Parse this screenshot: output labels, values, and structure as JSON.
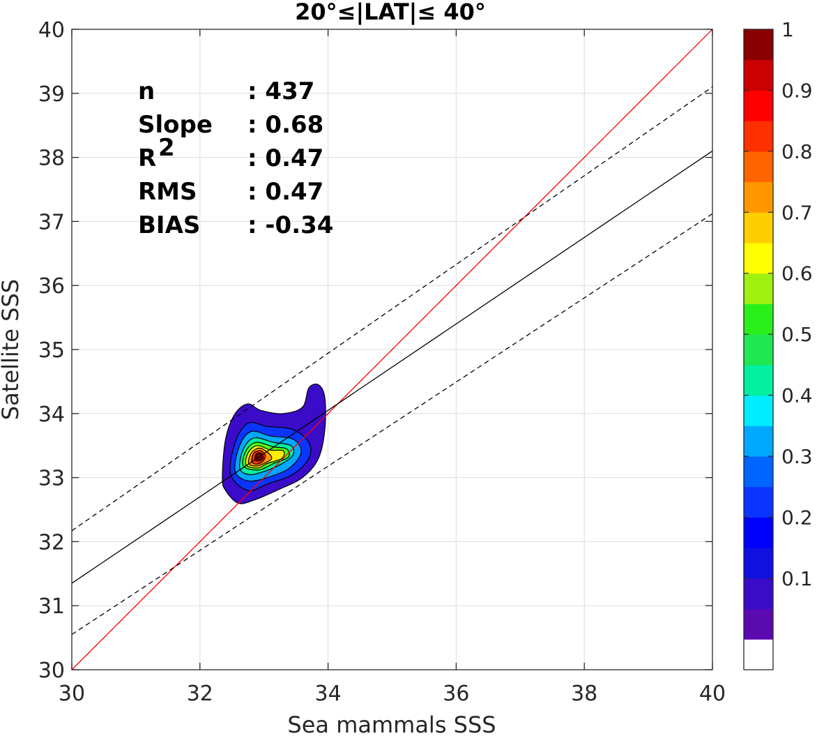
{
  "chart_data": {
    "type": "scatter",
    "title": "20°≤|LAT|≤ 40°",
    "xlabel": "Sea mammals SSS",
    "ylabel": "Satellite SSS",
    "xlim": [
      30,
      40
    ],
    "ylim": [
      30,
      40
    ],
    "xticks": [
      "30",
      "32",
      "34",
      "36",
      "38",
      "40"
    ],
    "yticks": [
      "30",
      "31",
      "32",
      "33",
      "34",
      "35",
      "36",
      "37",
      "38",
      "39",
      "40"
    ],
    "grid": true,
    "stats": [
      {
        "label": "n",
        "sup": "",
        "value": ": 437"
      },
      {
        "label": "Slope",
        "sup": "",
        "value": ": 0.68"
      },
      {
        "label": "R",
        "sup": "2",
        "value": ": 0.47"
      },
      {
        "label": "RMS",
        "sup": "",
        "value": ": 0.47"
      },
      {
        "label": "BIAS",
        "sup": "",
        "value": ": -0.34"
      }
    ],
    "lines": [
      {
        "kind": "one-to-one",
        "color": "#ff0000",
        "dash": false,
        "x": [
          30,
          40
        ],
        "y": [
          30,
          40
        ]
      },
      {
        "kind": "regression",
        "color": "#000000",
        "dash": false,
        "x": [
          30,
          40
        ],
        "y": [
          31.35,
          38.1
        ]
      },
      {
        "kind": "upper-bound",
        "color": "#000000",
        "dash": true,
        "x": [
          30,
          40
        ],
        "y": [
          32.17,
          39.1
        ]
      },
      {
        "kind": "lower-bound",
        "color": "#000000",
        "dash": true,
        "x": [
          30,
          40
        ],
        "y": [
          30.55,
          37.12
        ]
      }
    ],
    "density": {
      "peak": [
        32.92,
        33.33
      ],
      "levels": [
        {
          "level": 0.05,
          "color": "#3a0cc9",
          "points": [
            [
              32.35,
              33.0
            ],
            [
              32.4,
              33.6
            ],
            [
              32.55,
              34.0
            ],
            [
              32.75,
              34.15
            ],
            [
              32.95,
              34.05
            ],
            [
              33.3,
              34.0
            ],
            [
              33.6,
              34.1
            ],
            [
              33.7,
              34.4
            ],
            [
              33.85,
              34.45
            ],
            [
              33.95,
              34.25
            ],
            [
              33.95,
              33.75
            ],
            [
              33.85,
              33.3
            ],
            [
              33.6,
              33.0
            ],
            [
              33.2,
              32.8
            ],
            [
              32.85,
              32.65
            ],
            [
              32.6,
              32.6
            ],
            [
              32.4,
              32.8
            ]
          ]
        },
        {
          "level": 0.2,
          "color": "#0a35ff",
          "points": [
            [
              32.48,
              33.05
            ],
            [
              32.55,
              33.55
            ],
            [
              32.75,
              33.85
            ],
            [
              33.05,
              33.8
            ],
            [
              33.45,
              33.75
            ],
            [
              33.7,
              33.55
            ],
            [
              33.7,
              33.3
            ],
            [
              33.45,
              33.05
            ],
            [
              33.05,
              32.9
            ],
            [
              32.75,
              32.8
            ]
          ]
        },
        {
          "level": 0.3,
          "color": "#00a8ff",
          "points": [
            [
              32.55,
              33.1
            ],
            [
              32.62,
              33.5
            ],
            [
              32.8,
              33.72
            ],
            [
              33.1,
              33.65
            ],
            [
              33.45,
              33.6
            ],
            [
              33.58,
              33.4
            ],
            [
              33.4,
              33.15
            ],
            [
              33.05,
              33.0
            ],
            [
              32.75,
              32.95
            ]
          ]
        },
        {
          "level": 0.45,
          "color": "#00f0a0",
          "points": [
            [
              32.62,
              33.15
            ],
            [
              32.68,
              33.45
            ],
            [
              32.85,
              33.62
            ],
            [
              33.15,
              33.55
            ],
            [
              33.42,
              33.5
            ],
            [
              33.45,
              33.35
            ],
            [
              33.25,
              33.2
            ],
            [
              32.95,
              33.08
            ],
            [
              32.75,
              33.05
            ]
          ]
        },
        {
          "level": 0.55,
          "color": "#50ff10",
          "points": [
            [
              32.68,
              33.18
            ],
            [
              32.72,
              33.42
            ],
            [
              32.88,
              33.55
            ],
            [
              33.15,
              33.48
            ],
            [
              33.35,
              33.45
            ],
            [
              33.38,
              33.32
            ],
            [
              33.15,
              33.22
            ],
            [
              32.92,
              33.12
            ]
          ]
        },
        {
          "level": 0.65,
          "color": "#ffee00",
          "points": [
            [
              32.72,
              33.2
            ],
            [
              32.76,
              33.4
            ],
            [
              32.9,
              33.5
            ],
            [
              33.1,
              33.43
            ],
            [
              33.3,
              33.42
            ],
            [
              33.28,
              33.3
            ],
            [
              33.05,
              33.22
            ],
            [
              32.9,
              33.15
            ]
          ]
        },
        {
          "level": 0.75,
          "color": "#ff9600",
          "points": [
            [
              32.76,
              33.22
            ],
            [
              32.8,
              33.38
            ],
            [
              32.92,
              33.46
            ],
            [
              33.05,
              33.4
            ],
            [
              33.12,
              33.3
            ],
            [
              33.0,
              33.22
            ],
            [
              32.88,
              33.18
            ]
          ]
        },
        {
          "level": 0.85,
          "color": "#ff3000",
          "points": [
            [
              32.81,
              33.25
            ],
            [
              32.84,
              33.38
            ],
            [
              32.94,
              33.42
            ],
            [
              33.02,
              33.35
            ],
            [
              32.98,
              33.25
            ],
            [
              32.88,
              33.21
            ]
          ]
        },
        {
          "level": 0.95,
          "color": "#cc0000",
          "points": [
            [
              32.86,
              33.28
            ],
            [
              32.88,
              33.37
            ],
            [
              32.95,
              33.38
            ],
            [
              32.99,
              33.31
            ],
            [
              32.93,
              33.26
            ]
          ]
        }
      ]
    },
    "colorbar": {
      "ticks": [
        "0.1",
        "0.2",
        "0.3",
        "0.4",
        "0.5",
        "0.6",
        "0.7",
        "0.8",
        "0.9",
        "1"
      ],
      "ticks_shown": [
        "0.1",
        "0.2",
        "0.3",
        "0.4",
        "0.5",
        "0.6",
        "0.7",
        "0.8",
        "0.9",
        "1"
      ],
      "colors": [
        "#ffffff",
        "#5a0ab0",
        "#3a0cc9",
        "#1010e0",
        "#0000ff",
        "#0a35ff",
        "#0064ff",
        "#00a8ff",
        "#00ecff",
        "#00f0a0",
        "#1fe850",
        "#2af01a",
        "#a0f010",
        "#ffff00",
        "#ffcd00",
        "#ff9600",
        "#ff6400",
        "#ff3000",
        "#ff0000",
        "#cc0000",
        "#8a0000"
      ]
    }
  }
}
